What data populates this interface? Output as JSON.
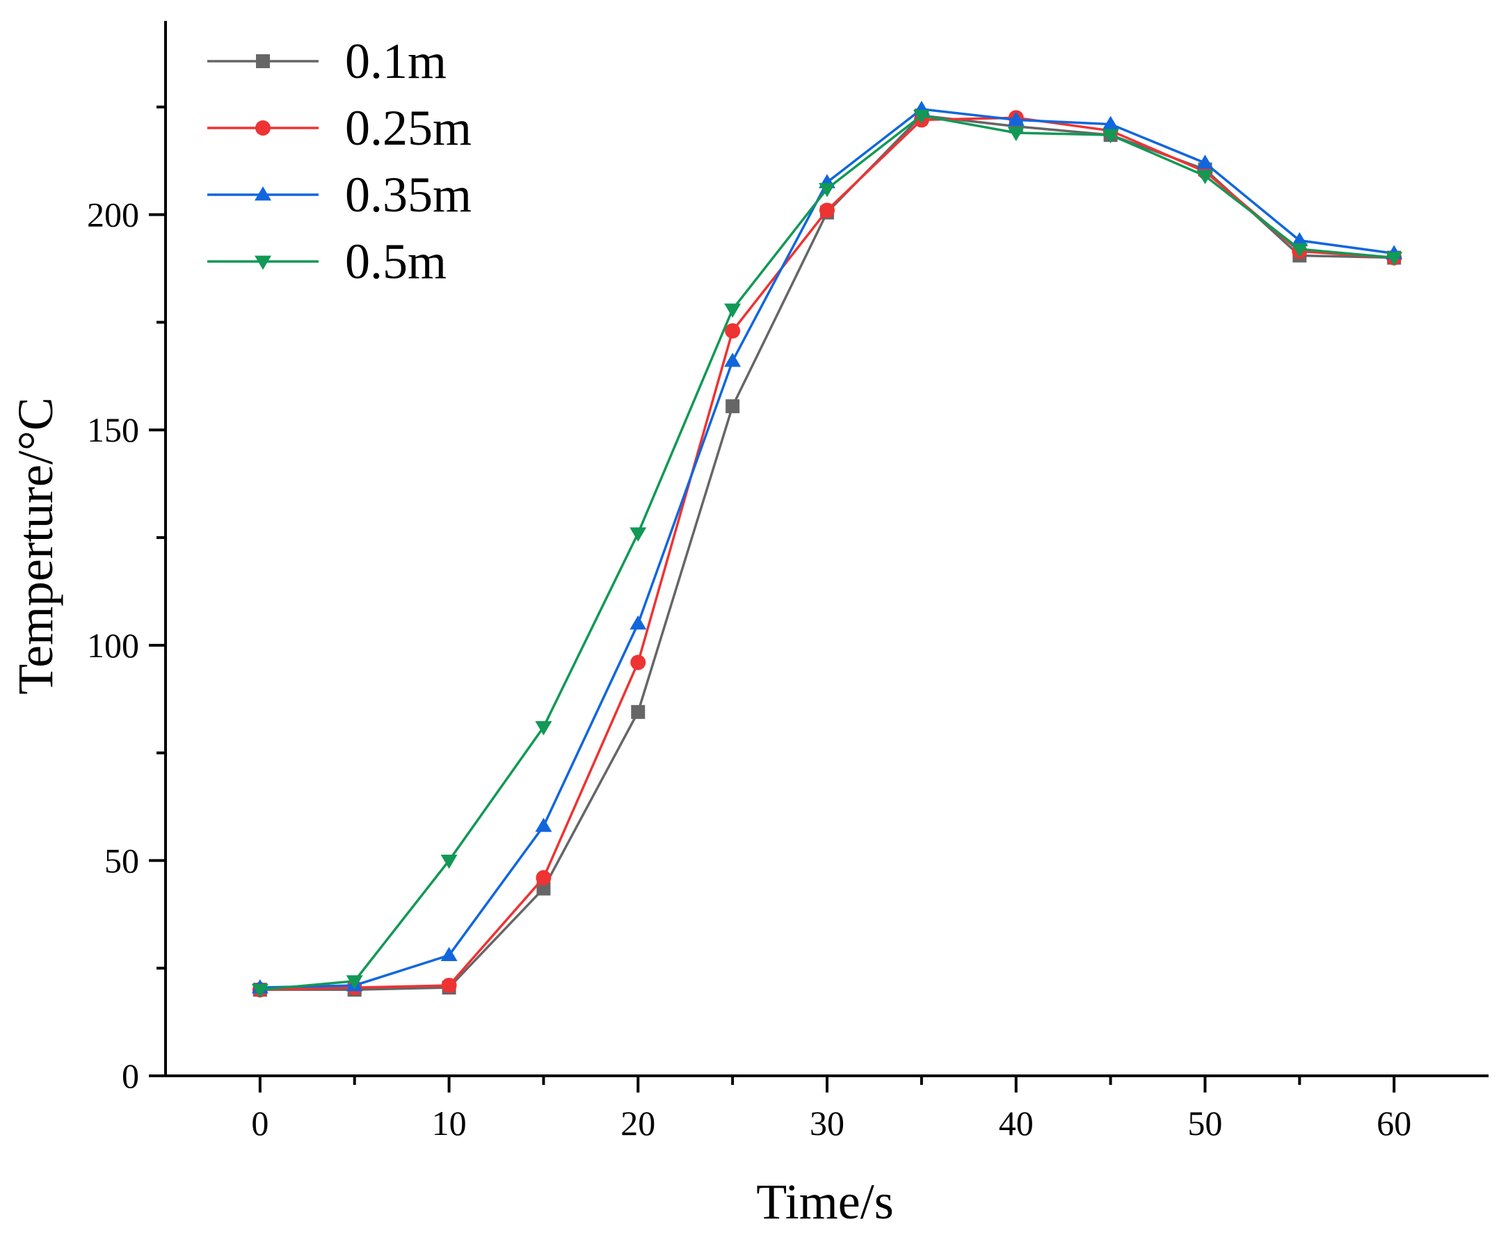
{
  "chart_data": {
    "type": "line",
    "title": "",
    "xlabel": "Time/s",
    "ylabel": "Temperture/°C",
    "xlim": [
      -5,
      65
    ],
    "ylim": [
      0,
      245
    ],
    "x_ticks": [
      0,
      10,
      20,
      30,
      40,
      50,
      60
    ],
    "x_minor_ticks": [
      5,
      15,
      25,
      35,
      45,
      55
    ],
    "y_ticks": [
      0,
      50,
      100,
      150,
      200
    ],
    "y_minor_ticks": [
      25,
      75,
      125,
      175,
      225
    ],
    "grid": false,
    "legend_position": "top-left",
    "x": [
      0,
      5,
      10,
      15,
      20,
      25,
      30,
      35,
      40,
      45,
      50,
      55,
      60
    ],
    "series": [
      {
        "name": "0.1m",
        "color": "#666666",
        "marker": "square",
        "values": [
          20,
          20,
          20.5,
          43.5,
          84.5,
          155.5,
          200.5,
          223,
          220.5,
          218.5,
          210.5,
          190.5,
          190
        ]
      },
      {
        "name": "0.25m",
        "color": "#ee3333",
        "marker": "circle",
        "values": [
          20,
          20.5,
          21,
          46,
          96,
          173,
          201,
          222,
          222.5,
          219.5,
          210,
          191.5,
          190
        ]
      },
      {
        "name": "0.35m",
        "color": "#1166dd",
        "marker": "triangle-up",
        "values": [
          20.5,
          21,
          28,
          58,
          105,
          166,
          207.5,
          224.5,
          222,
          221,
          212,
          194,
          191
        ]
      },
      {
        "name": "0.5m",
        "color": "#119955",
        "marker": "triangle-down",
        "values": [
          20,
          22,
          50,
          81,
          126,
          178,
          206,
          223,
          219,
          218.5,
          209,
          192,
          190
        ]
      }
    ]
  }
}
